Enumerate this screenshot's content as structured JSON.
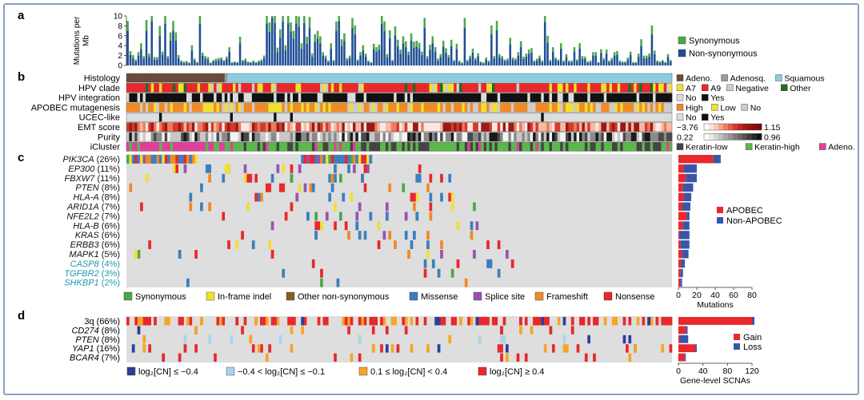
{
  "colors": {
    "frame": "#8aa0c8",
    "synonymous": "#4aa84a",
    "non_synonymous": "#1f4e96",
    "missense": "#3a7fc0",
    "nonsense": "#e8282c",
    "frameshift": "#f08a24",
    "inframe": "#f0e030",
    "splice": "#9a52b0",
    "other": "#8a5a2a",
    "apobec": "#e8282c",
    "non_apobec": "#3a55a8",
    "gain": "#e8282c",
    "loss": "#3a55a8",
    "cn_strong_loss": "#2a3f9a",
    "cn_weak_loss": "#a8d4e8",
    "cn_weak_gain": "#f5a623",
    "cn_strong_gain": "#e8282c",
    "grid_bg": "#dedede",
    "squamous": "#8ccbe0",
    "adeno": "#6b4a3a",
    "adenosq": "#9a9a9a",
    "keratin_low": "#444444",
    "keratin_high": "#5ab84a",
    "adeno_cluster": "#e0409a"
  },
  "panel_labels": {
    "a": "a",
    "b": "b",
    "c": "c",
    "d": "d"
  },
  "chart_data": [
    {
      "panel": "a",
      "type": "bar",
      "ylabel": "Mutations per Mb",
      "ylim": [
        0,
        10
      ],
      "yticks": [
        "0",
        "2",
        "4",
        "6",
        "8",
        "10"
      ],
      "series": [
        {
          "name": "Synonymous"
        },
        {
          "name": "Non-synonymous"
        }
      ],
      "legend": [
        {
          "label": "Synonymous",
          "color_key": "synonymous"
        },
        {
          "label": "Non-synonymous",
          "color_key": "non_synonymous"
        }
      ],
      "values_non_synonymous": [
        7,
        2.2,
        1.5,
        0.8,
        2,
        3.3,
        1.4,
        7,
        1.7,
        9,
        1.2,
        1.2,
        6,
        2.2,
        8.5,
        1.5,
        5,
        7,
        5,
        1.5,
        0.7,
        0.5,
        0.6,
        0.4,
        3,
        1,
        0.5,
        8.5,
        2,
        1.4,
        1.2,
        0.4,
        0.8,
        1,
        1.1,
        1.2,
        0.8,
        1.3,
        2.8,
        0.5,
        0.6,
        0.5,
        4.5,
        0.8,
        1,
        0.6,
        0.5,
        0.7,
        0.5,
        0.7,
        0.9,
        1.5,
        8.5,
        6.8,
        9.6,
        8.6,
        2.7,
        5.6,
        8.9,
        3.1,
        8.6,
        6.9,
        5.4,
        8.5,
        7.8,
        3.4,
        8.6,
        4.4,
        7.7,
        1.8,
        4.8,
        5.4,
        4.5,
        2,
        1.5,
        0.7,
        3.4,
        0.8,
        7,
        9,
        4,
        5,
        1.1,
        1.5,
        7.6,
        6.3,
        0.9,
        2,
        3.1,
        1.8,
        0.7,
        0.5,
        3.3,
        2.8,
        3.2,
        8.4,
        7,
        1.7,
        5.5,
        0.8,
        6.1,
        3.9,
        2.4,
        4.5,
        3.7,
        2.1,
        5,
        3.6,
        3.8,
        3.5,
        2.1,
        7.6,
        1.4,
        3.2,
        4.5,
        2.8,
        1,
        1.7,
        3.8,
        2.6,
        1.6,
        3.9,
        0.8,
        3.3,
        0.7,
        0.4,
        7.6,
        0.8,
        1.5,
        2.6,
        1.1,
        1.9,
        0.6,
        0.4,
        1.2,
        0.7,
        6.3,
        1.4,
        7.1,
        1.7,
        1.4,
        0.9,
        1,
        4.3,
        1.2,
        1,
        2,
        3.7,
        1.3,
        1.8,
        2.4,
        2.6,
        0.7,
        1,
        1.5,
        0.7,
        8.8,
        4.6,
        0.8,
        2.8,
        1.2,
        0.9,
        3.4,
        0.7,
        1.7,
        0.7,
        0.7,
        2.8,
        0.9,
        3.4,
        1.4,
        1.3,
        0.6,
        0.7,
        2,
        2,
        0.5,
        2.5,
        1.1,
        2.4,
        0.7,
        1.1,
        2,
        2.2,
        0.7,
        0.6,
        0.6,
        1.2,
        2.1,
        0.5,
        0.5,
        1.8,
        4,
        1.5,
        1.5,
        1.8,
        6.3,
        2.3,
        0.7,
        0.6,
        0.8,
        0.5,
        1.7,
        0.8
      ],
      "values_synonymous": [
        2,
        0.7,
        0.6,
        0.4,
        0.7,
        1.2,
        0.5,
        2.2,
        0.7,
        2.2,
        0.5,
        0.5,
        2,
        0.6,
        2.1,
        0.4,
        1.7,
        2,
        1.7,
        0.6,
        0.3,
        0.3,
        0.3,
        0.2,
        1.1,
        0.4,
        0.2,
        2.2,
        0.6,
        0.5,
        0.5,
        0.2,
        0.3,
        0.4,
        0.4,
        0.4,
        0.3,
        0.5,
        0.9,
        0.2,
        0.2,
        0.2,
        1.3,
        0.3,
        0.4,
        0.2,
        0.2,
        0.3,
        0.2,
        0.3,
        0.3,
        0.5,
        2.3,
        1.9,
        2.4,
        2.2,
        0.9,
        1.7,
        2.2,
        1,
        2.2,
        1.8,
        1.6,
        2.2,
        2.1,
        1.1,
        2.2,
        1.4,
        2.1,
        0.6,
        1.5,
        1.6,
        1.4,
        0.7,
        0.5,
        0.3,
        1.1,
        0.3,
        1.9,
        2.2,
        1.3,
        1.5,
        0.4,
        0.5,
        2,
        1.8,
        0.3,
        0.7,
        1,
        0.6,
        0.3,
        0.2,
        1.1,
        0.9,
        1,
        2.2,
        1.9,
        0.6,
        1.6,
        0.3,
        1.8,
        1.3,
        0.8,
        1.4,
        1.2,
        0.7,
        1.5,
        1.2,
        1.2,
        1.1,
        0.7,
        2,
        0.5,
        1,
        1.4,
        0.9,
        0.4,
        0.6,
        1.2,
        0.9,
        0.5,
        1.3,
        0.3,
        1.1,
        0.3,
        0.2,
        2,
        0.3,
        0.5,
        0.8,
        0.4,
        0.6,
        0.2,
        0.2,
        0.4,
        0.3,
        1.8,
        0.5,
        1.9,
        0.6,
        0.5,
        0.3,
        0.4,
        1.3,
        0.4,
        0.4,
        0.7,
        1.2,
        0.5,
        0.6,
        0.8,
        0.9,
        0.3,
        0.4,
        0.5,
        0.3,
        2.2,
        1.4,
        0.3,
        0.9,
        0.4,
        0.3,
        1.1,
        0.3,
        0.6,
        0.3,
        0.3,
        0.9,
        0.3,
        1.1,
        0.5,
        0.5,
        0.2,
        0.3,
        0.7,
        0.7,
        0.2,
        0.8,
        0.4,
        0.8,
        0.3,
        0.4,
        0.7,
        0.7,
        0.3,
        0.2,
        0.2,
        0.4,
        0.7,
        0.2,
        0.2,
        0.6,
        1.3,
        0.5,
        0.5,
        0.6,
        1.8,
        0.7,
        0.3,
        0.2,
        0.3,
        0.2,
        0.6,
        0.3
      ]
    },
    {
      "panel": "b",
      "type": "heatmap",
      "rows": [
        "Histology",
        "HPV clade",
        "HPV integration",
        "APOBEC mutagenesis",
        "UCEC-like",
        "EMT score",
        "Purity",
        "iCluster"
      ],
      "legends": [
        {
          "row": "Histology",
          "items": [
            {
              "label": "Adeno.",
              "color_key": "adeno"
            },
            {
              "label": "Adenosq.",
              "color_key": "adenosq"
            },
            {
              "label": "Squamous",
              "color_key": "squamous"
            }
          ]
        },
        {
          "row": "HPV clade",
          "items": [
            {
              "label": "A7",
              "color": "#f0e030"
            },
            {
              "label": "A9",
              "color": "#e8282c"
            },
            {
              "label": "Negative",
              "color": "#cccccc"
            },
            {
              "label": "Other",
              "color": "#1f6b2a"
            }
          ]
        },
        {
          "row": "HPV integration",
          "items": [
            {
              "label": "No",
              "color": "#dcdcdc"
            },
            {
              "label": "Yes",
              "color": "#111111"
            }
          ]
        },
        {
          "row": "APOBEC mutagenesis",
          "items": [
            {
              "label": "High",
              "color": "#f08a24"
            },
            {
              "label": "Low",
              "color": "#f0e030"
            },
            {
              "label": "No",
              "color": "#cccccc"
            }
          ]
        },
        {
          "row": "UCEC-like",
          "items": [
            {
              "label": "No",
              "color": "#dcdcdc"
            },
            {
              "label": "Yes",
              "color": "#111111"
            }
          ]
        },
        {
          "row": "EMT score",
          "gradient": {
            "min": "−3.76",
            "max": "1.15",
            "from": "#ffffff",
            "to": "#8a0d12"
          }
        },
        {
          "row": "Purity",
          "gradient": {
            "min": "0.22",
            "max": "0.96",
            "from": "#ffffff",
            "to": "#111111"
          }
        },
        {
          "row": "iCluster",
          "items": [
            {
              "label": "Keratin-low",
              "color_key": "keratin_low"
            },
            {
              "label": "Keratin-high",
              "color_key": "keratin_high"
            },
            {
              "label": "Adeno.",
              "color_key": "adeno_cluster"
            }
          ]
        }
      ]
    },
    {
      "panel": "c",
      "type": "heatmap",
      "genes": [
        {
          "name": "PIK3CA",
          "pct": "(26%)",
          "teal": false,
          "apobec": 38,
          "non_apobec": 8
        },
        {
          "name": "EP300",
          "pct": "(11%)",
          "teal": false,
          "apobec": 6,
          "non_apobec": 14
        },
        {
          "name": "FBXW7",
          "pct": "(11%)",
          "teal": false,
          "apobec": 8,
          "non_apobec": 12
        },
        {
          "name": "PTEN",
          "pct": "(8%)",
          "teal": false,
          "apobec": 5,
          "non_apobec": 11
        },
        {
          "name": "HLA-A",
          "pct": "(8%)",
          "teal": false,
          "apobec": 6,
          "non_apobec": 8
        },
        {
          "name": "ARID1A",
          "pct": "(7%)",
          "teal": false,
          "apobec": 4,
          "non_apobec": 9
        },
        {
          "name": "NFE2L2",
          "pct": "(7%)",
          "teal": false,
          "apobec": 9,
          "non_apobec": 3
        },
        {
          "name": "HLA-B",
          "pct": "(6%)",
          "teal": false,
          "apobec": 5,
          "non_apobec": 7
        },
        {
          "name": "KRAS",
          "pct": "(6%)",
          "teal": false,
          "apobec": 1,
          "non_apobec": 11
        },
        {
          "name": "ERBB3",
          "pct": "(6%)",
          "teal": false,
          "apobec": 2,
          "non_apobec": 10
        },
        {
          "name": "MAPK1",
          "pct": "(5%)",
          "teal": false,
          "apobec": 4,
          "non_apobec": 7
        },
        {
          "name": "CASP8",
          "pct": "(4%)",
          "teal": true,
          "apobec": 3,
          "non_apobec": 4
        },
        {
          "name": "TGFBR2",
          "pct": "(3%)",
          "teal": true,
          "apobec": 2,
          "non_apobec": 3
        },
        {
          "name": "SHKBP1",
          "pct": "(2%)",
          "teal": true,
          "apobec": 2,
          "non_apobec": 2
        }
      ],
      "xlabel": "Mutations",
      "xlim": [
        0,
        80
      ],
      "xticks": [
        "0",
        "20",
        "40",
        "60",
        "80"
      ],
      "side_legend": [
        {
          "label": "APOBEC",
          "color_key": "apobec"
        },
        {
          "label": "Non-APOBEC",
          "color_key": "non_apobec"
        }
      ],
      "bottom_legend": [
        {
          "label": "Synonymous",
          "color_key": "synonymous"
        },
        {
          "label": "In-frame indel",
          "color_key": "inframe"
        },
        {
          "label": "Other non-synonymous",
          "color_key": "other"
        },
        {
          "label": "Missense",
          "color_key": "missense"
        },
        {
          "label": "Splice site",
          "color_key": "splice"
        },
        {
          "label": "Frameshift",
          "color_key": "frameshift"
        },
        {
          "label": "Nonsense",
          "color_key": "nonsense"
        }
      ]
    },
    {
      "panel": "d",
      "type": "heatmap",
      "rows": [
        {
          "name": "3q",
          "pct": "(66%)",
          "italic": false,
          "gain": 120,
          "loss": 4
        },
        {
          "name": "CD274",
          "pct": "(8%)",
          "italic": true,
          "gain": 12,
          "loss": 3
        },
        {
          "name": "PTEN",
          "pct": "(8%)",
          "italic": true,
          "gain": 2,
          "loss": 14
        },
        {
          "name": "YAP1",
          "pct": "(16%)",
          "italic": true,
          "gain": 28,
          "loss": 2
        },
        {
          "name": "BCAR4",
          "pct": "(7%)",
          "italic": true,
          "gain": 10,
          "loss": 2
        }
      ],
      "xlabel": "Gene-level SCNAs",
      "xlim": [
        0,
        120
      ],
      "xticks": [
        "0",
        "40",
        "80",
        "120"
      ],
      "side_legend": [
        {
          "label": "Gain",
          "color_key": "gain"
        },
        {
          "label": "Loss",
          "color_key": "loss"
        }
      ],
      "bottom_legend": [
        {
          "label": "log₂[CN] ≤ −0.4",
          "color_key": "cn_strong_loss"
        },
        {
          "label": "−0.4 < log₂[CN] ≤ −0.1",
          "color_key": "cn_weak_loss"
        },
        {
          "label": "0.1 ≤ log₂[CN] < 0.4",
          "color_key": "cn_weak_gain"
        },
        {
          "label": "log₂[CN] ≥ 0.4",
          "color_key": "cn_strong_gain"
        }
      ]
    }
  ]
}
